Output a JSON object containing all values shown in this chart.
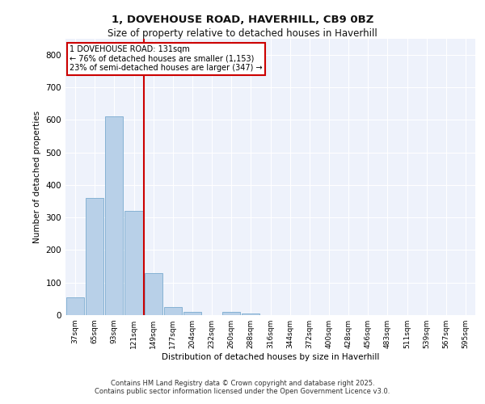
{
  "title_line1": "1, DOVEHOUSE ROAD, HAVERHILL, CB9 0BZ",
  "title_line2": "Size of property relative to detached houses in Haverhill",
  "xlabel": "Distribution of detached houses by size in Haverhill",
  "ylabel": "Number of detached properties",
  "footer_line1": "Contains HM Land Registry data © Crown copyright and database right 2025.",
  "footer_line2": "Contains public sector information licensed under the Open Government Licence v3.0.",
  "annotation_line1": "1 DOVEHOUSE ROAD: 131sqm",
  "annotation_line2": "← 76% of detached houses are smaller (1,153)",
  "annotation_line3": "23% of semi-detached houses are larger (347) →",
  "bar_color": "#b8d0e8",
  "bar_edge_color": "#7aabcf",
  "vline_color": "#cc0000",
  "annotation_box_edgecolor": "#cc0000",
  "plot_bg_color": "#eef2fb",
  "grid_color": "#ffffff",
  "fig_bg_color": "#ffffff",
  "categories": [
    "37sqm",
    "65sqm",
    "93sqm",
    "121sqm",
    "149sqm",
    "177sqm",
    "204sqm",
    "232sqm",
    "260sqm",
    "288sqm",
    "316sqm",
    "344sqm",
    "372sqm",
    "400sqm",
    "428sqm",
    "456sqm",
    "483sqm",
    "511sqm",
    "539sqm",
    "567sqm",
    "595sqm"
  ],
  "values": [
    55,
    360,
    610,
    320,
    130,
    25,
    10,
    0,
    10,
    5,
    0,
    0,
    0,
    0,
    0,
    0,
    0,
    0,
    0,
    0,
    0
  ],
  "ylim": [
    0,
    850
  ],
  "yticks": [
    0,
    100,
    200,
    300,
    400,
    500,
    600,
    700,
    800
  ],
  "vline_position": 3.5
}
